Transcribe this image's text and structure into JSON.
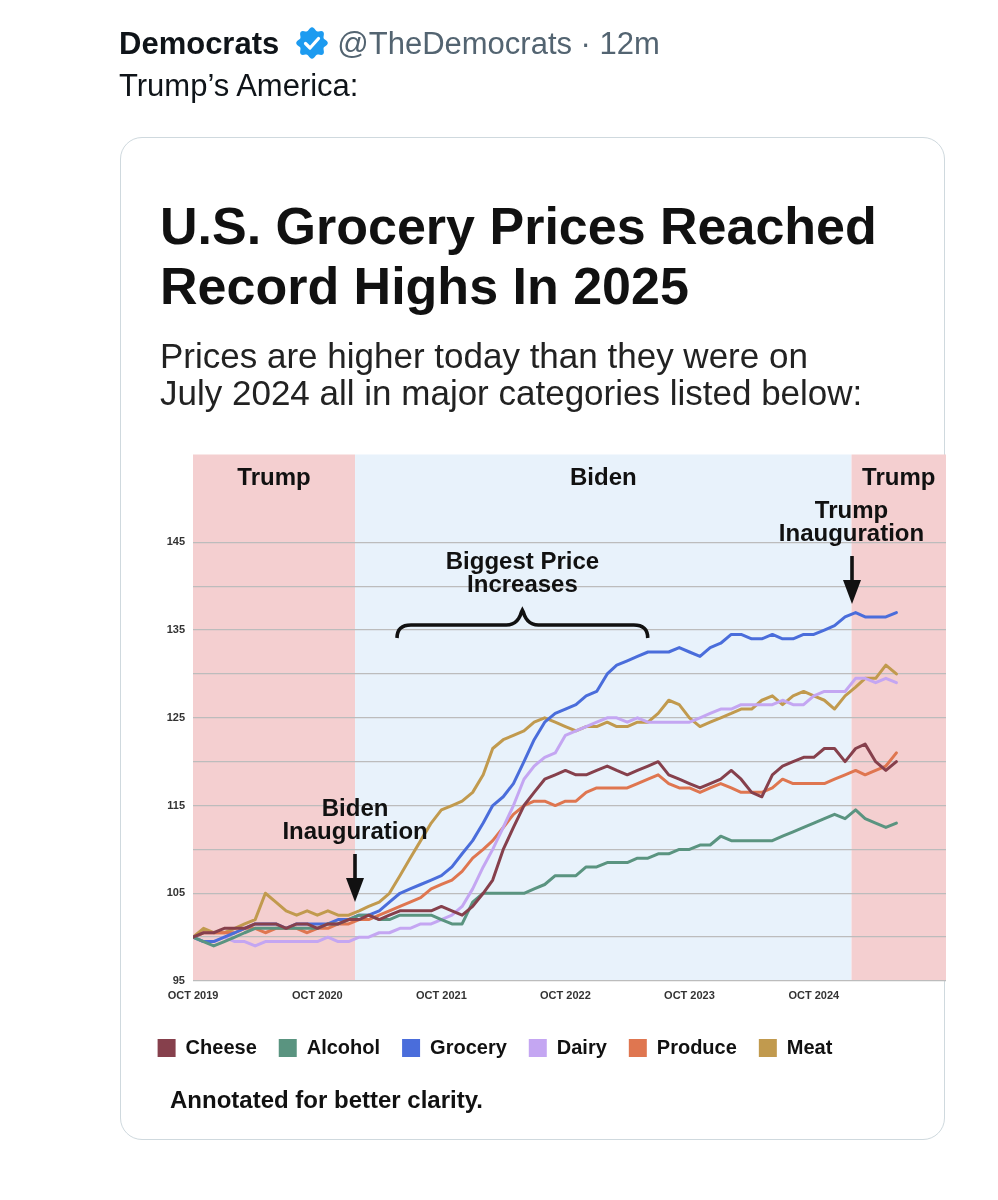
{
  "chart_data": {
    "type": "line",
    "title": "U.S. Grocery Prices Reached Record Highs In 2025",
    "subtitle": "Prices are higher today than they were on July 2024 all in major categories listed below:",
    "annotations": [
      "Democrats",
      "@TheDemocrats · 12m",
      "Trump’s America:",
      "Biggest Price Increases",
      {
        "text": "Biden Inauguration",
        "x": "2021-01-20",
        "y": 104
      },
      {
        "text": "Trump Inauguration",
        "x": "2025-01-20",
        "y": 138
      },
      "Annotated for better clarity."
    ],
    "x": [
      "2019-10",
      "2019-11",
      "2019-12",
      "2020-01",
      "2020-02",
      "2020-03",
      "2020-04",
      "2020-05",
      "2020-06",
      "2020-07",
      "2020-08",
      "2020-09",
      "2020-10",
      "2020-11",
      "2020-12",
      "2021-01",
      "2021-02",
      "2021-03",
      "2021-04",
      "2021-05",
      "2021-06",
      "2021-07",
      "2021-08",
      "2021-09",
      "2021-10",
      "2021-11",
      "2021-12",
      "2022-01",
      "2022-02",
      "2022-03",
      "2022-04",
      "2022-05",
      "2022-06",
      "2022-07",
      "2022-08",
      "2022-09",
      "2022-10",
      "2022-11",
      "2022-12",
      "2023-01",
      "2023-02",
      "2023-03",
      "2023-04",
      "2023-05",
      "2023-06",
      "2023-07",
      "2023-08",
      "2023-09",
      "2023-10",
      "2023-11",
      "2023-12",
      "2024-01",
      "2024-02",
      "2024-03",
      "2024-04",
      "2024-05",
      "2024-06",
      "2024-07",
      "2024-08",
      "2024-09",
      "2024-10",
      "2024-11",
      "2024-12",
      "2025-01",
      "2025-02",
      "2025-03",
      "2025-04",
      "2025-05",
      "2025-06"
    ],
    "series": [
      {
        "name": "Cheese",
        "color": "#86404c",
        "values": [
          100,
          100.5,
          100.5,
          101,
          101,
          101,
          101.5,
          101.5,
          101.5,
          101,
          101.5,
          101.5,
          101,
          101.5,
          101.5,
          102,
          102,
          102.5,
          102,
          102.5,
          103,
          103,
          103,
          103,
          103.5,
          103,
          102.5,
          103.5,
          105,
          106.5,
          110,
          112.5,
          115,
          116.5,
          118,
          118.5,
          119,
          118.5,
          118.5,
          119,
          119.5,
          119,
          118.5,
          119,
          119.5,
          120,
          118.5,
          118,
          117.5,
          117,
          117.5,
          118,
          119,
          118,
          116.5,
          116,
          118.5,
          119.5,
          120,
          120.5,
          120.5,
          121.5,
          121.5,
          120,
          121.5,
          122,
          120,
          119,
          120
        ]
      },
      {
        "name": "Alcohol",
        "color": "#5a9480",
        "values": [
          100,
          99.5,
          99,
          99.5,
          100,
          100.5,
          101,
          101,
          101,
          101,
          101,
          101,
          101,
          101.5,
          101.5,
          102,
          102.5,
          102.5,
          102,
          102,
          102.5,
          102.5,
          102.5,
          102.5,
          102,
          101.5,
          101.5,
          104,
          105,
          105,
          105,
          105,
          105,
          105.5,
          106,
          107,
          107,
          107,
          108,
          108,
          108.5,
          108.5,
          108.5,
          109,
          109,
          109.5,
          109.5,
          110,
          110,
          110.5,
          110.5,
          111.5,
          111,
          111,
          111,
          111,
          111,
          111.5,
          112,
          112.5,
          113,
          113.5,
          114,
          113.5,
          114.5,
          113.5,
          113,
          112.5,
          113
        ]
      },
      {
        "name": "Grocery",
        "color": "#4a6ddb",
        "values": [
          100,
          99.5,
          99.5,
          100,
          100.5,
          101,
          101.5,
          101.5,
          101.5,
          101,
          101.5,
          101.5,
          101.5,
          101.5,
          102,
          102,
          102.5,
          102.5,
          103,
          104,
          105,
          105.5,
          106,
          106.5,
          107,
          108,
          109.5,
          111,
          113,
          115,
          116,
          117.5,
          120,
          122.5,
          124.5,
          125.5,
          126,
          126.5,
          127.5,
          128,
          130,
          131,
          131.5,
          132,
          132.5,
          132.5,
          132.5,
          133,
          132.5,
          132,
          133,
          133.5,
          134.5,
          134.5,
          134,
          134,
          134.5,
          134,
          134,
          134.5,
          134.5,
          135,
          135.5,
          136.5,
          137,
          136.5,
          136.5,
          136.5,
          137
        ]
      },
      {
        "name": "Dairy",
        "color": "#c4a6f2",
        "values": [
          100,
          99.5,
          99.5,
          100,
          99.5,
          99.5,
          99,
          99.5,
          99.5,
          99.5,
          99.5,
          99.5,
          99.5,
          100,
          99.5,
          99.5,
          100,
          100,
          100.5,
          100.5,
          101,
          101,
          101.5,
          101.5,
          102,
          102.5,
          103.5,
          105.5,
          108,
          110,
          112.5,
          115,
          118,
          119.5,
          120.5,
          121,
          123,
          123.5,
          124,
          124.5,
          125,
          125,
          124.5,
          125,
          124.5,
          124.5,
          124.5,
          124.5,
          124.5,
          125,
          125.5,
          126,
          126,
          126.5,
          126.5,
          126.5,
          126.5,
          127,
          126.5,
          126.5,
          127.5,
          128,
          128,
          128,
          129.5,
          129.5,
          129,
          129.5,
          129
        ]
      },
      {
        "name": "Produce",
        "color": "#df7650",
        "values": [
          100,
          100.5,
          100.5,
          100.5,
          100.5,
          101,
          101,
          100.5,
          101,
          101,
          101,
          100.5,
          101,
          101,
          101.5,
          101.5,
          102,
          102,
          102.5,
          103,
          103.5,
          104,
          104.5,
          105.5,
          106,
          106.5,
          107.5,
          109,
          110,
          111,
          112.5,
          114,
          115,
          115.5,
          115.5,
          115,
          115.5,
          115.5,
          116.5,
          117,
          117,
          117,
          117,
          117.5,
          118,
          118.5,
          117.5,
          117,
          117,
          116.5,
          117,
          117.5,
          117,
          116.5,
          116.5,
          116.5,
          117,
          118,
          117.5,
          117.5,
          117.5,
          117.5,
          118,
          118.5,
          119,
          118.5,
          119,
          119.5,
          121
        ]
      },
      {
        "name": "Meat",
        "color": "#c19a4e",
        "values": [
          100,
          101,
          100.5,
          100.5,
          101,
          101.5,
          102,
          105,
          104,
          103,
          102.5,
          103,
          102.5,
          103,
          102.5,
          102.5,
          103,
          103.5,
          104,
          105,
          107,
          109,
          111,
          113,
          114.5,
          115,
          115.5,
          116.5,
          118.5,
          121.5,
          122.5,
          123,
          123.5,
          124.5,
          125,
          124.5,
          124,
          123.5,
          124,
          124,
          124.5,
          124,
          124,
          124.5,
          124.5,
          125.5,
          127,
          126.5,
          125,
          124,
          124.5,
          125,
          125.5,
          126,
          126,
          127,
          127.5,
          126.5,
          127.5,
          128,
          127.5,
          127,
          126,
          127.5,
          128.5,
          129.5,
          129.5,
          131,
          130
        ]
      }
    ],
    "xlim": [
      "2019-10",
      "2025-10-25"
    ],
    "ylim": [
      95,
      155
    ],
    "xticks": [
      {
        "value": "2019-10",
        "label": "OCT 2019"
      },
      {
        "value": "2020-10",
        "label": "OCT 2020"
      },
      {
        "value": "2021-10",
        "label": "OCT 2021"
      },
      {
        "value": "2022-10",
        "label": "OCT 2022"
      },
      {
        "value": "2023-10",
        "label": "OCT 2023"
      },
      {
        "value": "2024-10",
        "label": "OCT 2024"
      }
    ],
    "yticks": [
      95,
      {
        "value": 100,
        "label": null
      },
      105,
      {
        "value": 110,
        "label": null
      },
      115,
      {
        "value": 120,
        "label": null
      },
      125,
      {
        "value": 130,
        "label": null
      },
      135,
      {
        "value": 140,
        "label": null
      },
      145
    ],
    "bands": [
      {
        "axis": "x",
        "from": "2019-10",
        "to": "2021-01-20",
        "label": "Trump",
        "color": "#f4cfd0"
      },
      {
        "axis": "x",
        "from": "2021-01-20",
        "to": "2025-01-20",
        "label": "Biden",
        "color": "#e8f2fb"
      },
      {
        "axis": "x",
        "from": "2025-01-20",
        "to": "2025-10-25",
        "label": "Trump",
        "color": "#f4cfd0"
      }
    ],
    "grid": "y",
    "legend": "bottom"
  }
}
